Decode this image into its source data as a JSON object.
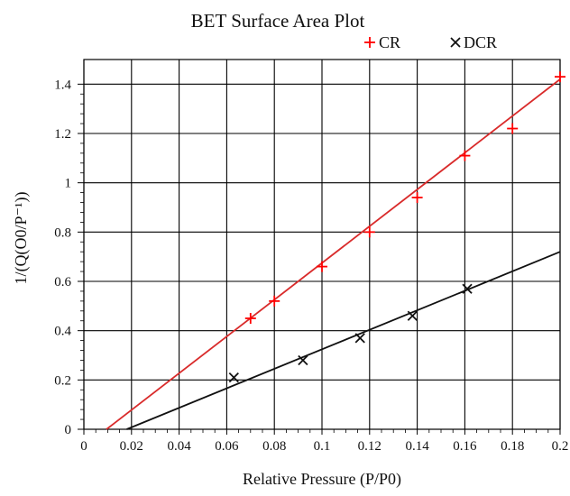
{
  "chart_data": {
    "type": "scatter",
    "title": "BET Surface Area Plot",
    "xlabel": "Relative Pressure (P/P0)",
    "ylabel": "1/(Q(O0/P⁻¹))",
    "xlim": [
      0,
      0.2
    ],
    "ylim": [
      0,
      1.5
    ],
    "grid": true,
    "legend": "top-right",
    "x_ticks": [
      0,
      0.02,
      0.04,
      0.06,
      0.08,
      0.1,
      0.12,
      0.14,
      0.16,
      0.18,
      0.2
    ],
    "x_tick_labels": [
      "0",
      "0.02",
      "0.04",
      "0.06",
      "0.08",
      "0.1",
      "0.12",
      "0.14",
      "0.16",
      "0.18",
      "0.2"
    ],
    "y_ticks": [
      0,
      0.2,
      0.4,
      0.6,
      0.8,
      1,
      1.2,
      1.4
    ],
    "y_tick_labels": [
      "0",
      "0.2",
      "0.4",
      "0.6",
      "0.8",
      "1",
      "1.2",
      "1.4"
    ],
    "series": [
      {
        "name": "CR",
        "marker": "plus",
        "color": "#ff0000",
        "line_color": "#d92b2b",
        "points": [
          {
            "x": 0.07,
            "y": 0.45
          },
          {
            "x": 0.08,
            "y": 0.52
          },
          {
            "x": 0.1,
            "y": 0.66
          },
          {
            "x": 0.12,
            "y": 0.8
          },
          {
            "x": 0.14,
            "y": 0.94
          },
          {
            "x": 0.16,
            "y": 1.11
          },
          {
            "x": 0.18,
            "y": 1.22
          },
          {
            "x": 0.2,
            "y": 1.43
          }
        ],
        "fit_line": [
          {
            "x": 0.0095,
            "y": 0
          },
          {
            "x": 0.2,
            "y": 1.42
          }
        ]
      },
      {
        "name": "DCR",
        "marker": "x",
        "color": "#111111",
        "line_color": "#111111",
        "points": [
          {
            "x": 0.063,
            "y": 0.21
          },
          {
            "x": 0.092,
            "y": 0.28
          },
          {
            "x": 0.116,
            "y": 0.37
          },
          {
            "x": 0.138,
            "y": 0.46
          },
          {
            "x": 0.161,
            "y": 0.57
          }
        ],
        "fit_line": [
          {
            "x": 0.018,
            "y": 0
          },
          {
            "x": 0.2,
            "y": 0.72
          }
        ]
      }
    ]
  }
}
